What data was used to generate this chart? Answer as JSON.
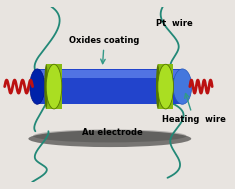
{
  "bg_color": "#e8e4e0",
  "tube_color_main": "#2244cc",
  "tube_color_light": "#5577ee",
  "tube_color_dark": "#0022aa",
  "tube_color_right": "#3366dd",
  "electrode_color": "#88bb11",
  "electrode_color_light": "#aade22",
  "electrode_color_dark": "#557700",
  "wire_teal_color": "#228877",
  "wire_red_color": "#bb1111",
  "label_oxides": "Oxides coating",
  "label_au": "Au electrode",
  "label_pt": "Pt  wire",
  "label_heating": "Heating  wire",
  "arrow_color": "#339988",
  "figsize": [
    2.35,
    1.89
  ],
  "dpi": 100
}
